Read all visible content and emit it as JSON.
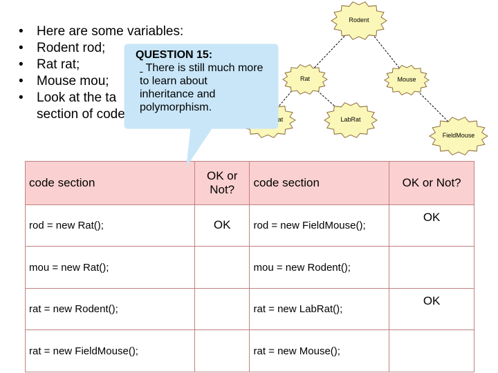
{
  "bullets": {
    "items": [
      "Here are some variables:",
      "Rodent rod;",
      "Rat rat;",
      "Mouse mou;",
      "Look at the ta"
    ],
    "continuation": "section of code"
  },
  "callout": {
    "title": "QUESTION 15:",
    "body_line1": " There is still much more",
    "body_line2": "to learn about",
    "body_line3": "inheritance and",
    "body_line4": "polymorphism."
  },
  "hierarchy": {
    "nodes": {
      "rodent": "Rodent",
      "rat": "Rat",
      "mouse": "Mouse",
      "norway": "NorwayRat",
      "lab": "LabRat",
      "field": "FieldMouse"
    },
    "colors": {
      "fill": "#fbf7b8",
      "stroke": "#8b6a3a"
    }
  },
  "table": {
    "headers": {
      "code1": "code section",
      "ok1": "OK or Not?",
      "code2": "code section",
      "ok2": "OK or Not?"
    },
    "rows": [
      {
        "code1": "rod = new Rat();",
        "ok1": "OK",
        "code2": "rod = new FieldMouse();",
        "ok2": "OK"
      },
      {
        "code1": "mou = new Rat();",
        "ok1": "",
        "code2": "mou = new Rodent();",
        "ok2": ""
      },
      {
        "code1": "rat = new Rodent();",
        "ok1": "",
        "code2": "rat = new LabRat();",
        "ok2": "OK"
      },
      {
        "code1": "rat = new FieldMouse();",
        "ok1": "",
        "code2": "rat = new Mouse();",
        "ok2": ""
      }
    ],
    "colors": {
      "header_bg": "#fbd0d0",
      "border": "#c08080"
    }
  }
}
